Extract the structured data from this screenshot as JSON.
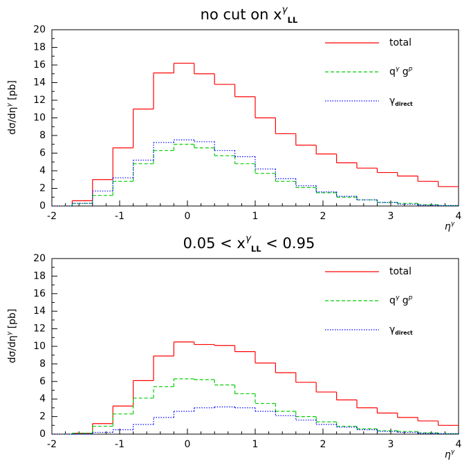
{
  "chart_data": [
    {
      "type": "histogram",
      "title": [
        "no cut on x",
        {
          "sup": "γ"
        },
        {
          "sub": "LL"
        }
      ],
      "x_label": [
        "η",
        {
          "sup": "γ"
        }
      ],
      "y_label": [
        "dσ/dη",
        {
          "sup": "γ"
        },
        " [pb]"
      ],
      "bins": [
        -2,
        -1.7,
        -1.4,
        -1.1,
        -0.8,
        -0.5,
        -0.2,
        0.1,
        0.4,
        0.7,
        1,
        1.3,
        1.6,
        1.9,
        2.2,
        2.5,
        2.8,
        3.1,
        3.4,
        3.7,
        4
      ],
      "xlim": [
        -2,
        4
      ],
      "xticks": [
        -2,
        -1,
        0,
        1,
        2,
        3,
        4
      ],
      "ylim": [
        0,
        20
      ],
      "yticks": [
        0,
        2,
        4,
        6,
        8,
        10,
        12,
        14,
        16,
        18,
        20
      ],
      "series": [
        {
          "name": [
            "total"
          ],
          "color": "#ff0000",
          "dash": "solid",
          "values": [
            0,
            0.6,
            3.0,
            6.6,
            11.0,
            15.1,
            16.2,
            15.0,
            13.8,
            12.4,
            10.0,
            8.2,
            6.9,
            5.9,
            4.9,
            4.3,
            3.8,
            3.4,
            2.8,
            2.2
          ]
        },
        {
          "name": [
            "q",
            {
              "sup": "γ"
            },
            " g",
            {
              "sup": "p"
            }
          ],
          "color": "#00cc00",
          "dash": "dashed",
          "values": [
            0,
            0.3,
            1.2,
            2.8,
            4.8,
            6.3,
            7.0,
            6.6,
            5.7,
            4.8,
            3.7,
            2.8,
            2.1,
            1.5,
            1.0,
            0.7,
            0.4,
            0.3,
            0.15,
            0.05
          ]
        },
        {
          "name": [
            "γ",
            {
              "sub": "direct"
            }
          ],
          "color": "#0000ff",
          "dash": "dotted",
          "values": [
            0,
            0.3,
            1.7,
            3.2,
            5.2,
            7.2,
            7.5,
            7.3,
            6.3,
            5.6,
            4.2,
            3.1,
            2.3,
            1.6,
            1.1,
            0.7,
            0.4,
            0.2,
            0.1,
            0.05
          ]
        }
      ]
    },
    {
      "type": "histogram",
      "title": [
        "0.05 < x",
        {
          "sup": "γ"
        },
        {
          "sub": "LL"
        },
        " < 0.95"
      ],
      "x_label": [
        "η",
        {
          "sup": "γ"
        }
      ],
      "y_label": [
        "dσ/dη",
        {
          "sup": "γ"
        },
        " [pb]"
      ],
      "bins": [
        -2,
        -1.7,
        -1.4,
        -1.1,
        -0.8,
        -0.5,
        -0.2,
        0.1,
        0.4,
        0.7,
        1,
        1.3,
        1.6,
        1.9,
        2.2,
        2.5,
        2.8,
        3.1,
        3.4,
        3.7,
        4
      ],
      "xlim": [
        -2,
        4
      ],
      "xticks": [
        -2,
        -1,
        0,
        1,
        2,
        3,
        4
      ],
      "ylim": [
        0,
        20
      ],
      "yticks": [
        0,
        2,
        4,
        6,
        8,
        10,
        12,
        14,
        16,
        18,
        20
      ],
      "series": [
        {
          "name": [
            "total"
          ],
          "color": "#ff0000",
          "dash": "solid",
          "values": [
            0,
            0.1,
            1.2,
            3.2,
            6.1,
            8.9,
            10.5,
            10.2,
            10.1,
            9.4,
            8.1,
            7.0,
            5.9,
            4.8,
            3.9,
            3.0,
            2.4,
            1.9,
            1.5,
            1.0
          ]
        },
        {
          "name": [
            "q",
            {
              "sup": "γ"
            },
            " g",
            {
              "sup": "p"
            }
          ],
          "color": "#00cc00",
          "dash": "dashed",
          "values": [
            0,
            0.1,
            0.9,
            2.3,
            4.1,
            5.4,
            6.3,
            6.2,
            5.6,
            4.6,
            3.5,
            2.6,
            2.0,
            1.4,
            0.9,
            0.6,
            0.4,
            0.3,
            0.15,
            0.05
          ]
        },
        {
          "name": [
            "γ",
            {
              "sub": "direct"
            }
          ],
          "color": "#0000ff",
          "dash": "dotted",
          "values": [
            0,
            0,
            0.2,
            0.5,
            1.1,
            1.9,
            2.6,
            3.0,
            3.1,
            3.0,
            2.6,
            2.1,
            1.6,
            1.1,
            0.8,
            0.5,
            0.3,
            0.2,
            0.1,
            0.05
          ]
        }
      ]
    }
  ]
}
